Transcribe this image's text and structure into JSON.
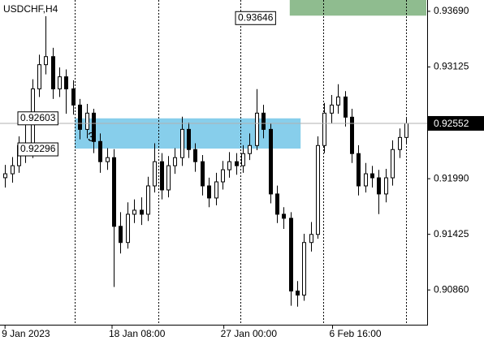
{
  "chart_data": {
    "type": "candlestick",
    "title": "USDCHF,H4",
    "x": [
      0,
      1,
      2,
      3,
      4,
      5,
      6,
      7,
      8,
      9,
      10,
      11,
      12,
      13,
      14,
      15,
      16,
      17,
      18,
      19,
      20,
      21,
      22,
      23,
      24,
      25,
      26,
      27,
      28,
      29,
      30,
      31,
      32,
      33,
      34,
      35,
      36,
      37,
      38,
      39,
      40,
      41,
      42,
      43,
      44,
      45,
      46,
      47,
      48,
      49,
      50,
      51,
      52,
      53,
      54,
      55,
      56,
      57,
      58,
      59
    ],
    "open": [
      0.92,
      0.9204,
      0.92122,
      0.92327,
      0.92245,
      0.92902,
      0.93148,
      0.9323,
      0.92902,
      0.93025,
      0.92902,
      0.92738,
      0.92491,
      0.92656,
      0.92368,
      0.92163,
      0.92204,
      0.91506,
      0.91342,
      0.91629,
      0.9167,
      0.91629,
      0.91917,
      0.92163,
      0.91876,
      0.92122,
      0.92204,
      0.92491,
      0.92286,
      0.92163,
      0.91917,
      0.91794,
      0.91958,
      0.92081,
      0.92163,
      0.92122,
      0.92245,
      0.92327,
      0.92656,
      0.92491,
      0.91835,
      0.91629,
      0.91588,
      0.90849,
      0.90808,
      0.91342,
      0.91424,
      0.92327,
      0.92656,
      0.92738,
      0.9282,
      0.92615,
      0.92245,
      0.91917,
      0.9204,
      0.91999,
      0.91835,
      0.91999,
      0.92286,
      0.92409
    ],
    "high": [
      0.9213,
      0.9221,
      0.9242,
      0.926,
      0.93,
      0.9325,
      0.9364,
      0.9332,
      0.9312,
      0.931,
      0.9299,
      0.928,
      0.9275,
      0.927,
      0.9245,
      0.923,
      0.9229,
      0.9165,
      0.9175,
      0.9178,
      0.918,
      0.9201,
      0.9235,
      0.9225,
      0.9222,
      0.923,
      0.9262,
      0.9256,
      0.9235,
      0.9223,
      0.92,
      0.9205,
      0.9217,
      0.9226,
      0.9225,
      0.9233,
      0.9245,
      0.929,
      0.9274,
      0.9255,
      0.9192,
      0.917,
      0.9165,
      0.9095,
      0.9143,
      0.9155,
      0.9242,
      0.9276,
      0.9284,
      0.9295,
      0.9288,
      0.927,
      0.9233,
      0.9215,
      0.9212,
      0.9208,
      0.9209,
      0.9238,
      0.925,
      0.9261
    ],
    "low": [
      0.919,
      0.9195,
      0.9205,
      0.9215,
      0.922,
      0.9282,
      0.9305,
      0.928,
      0.9282,
      0.9265,
      0.9264,
      0.9239,
      0.924,
      0.9225,
      0.9205,
      0.9208,
      0.9089,
      0.9123,
      0.9128,
      0.9154,
      0.9152,
      0.9156,
      0.9185,
      0.9178,
      0.918,
      0.9204,
      0.9212,
      0.922,
      0.9206,
      0.9182,
      0.917,
      0.9172,
      0.9188,
      0.92,
      0.9203,
      0.9205,
      0.9218,
      0.9228,
      0.924,
      0.9174,
      0.9154,
      0.9148,
      0.907,
      0.9069,
      0.9075,
      0.9125,
      0.9138,
      0.9225,
      0.9255,
      0.9265,
      0.9252,
      0.9215,
      0.9182,
      0.9185,
      0.919,
      0.9163,
      0.9175,
      0.9192,
      0.922,
      0.9235
    ],
    "close": [
      0.9204,
      0.92122,
      0.92327,
      0.92245,
      0.92902,
      0.93148,
      0.9323,
      0.92902,
      0.93025,
      0.92902,
      0.92738,
      0.92491,
      0.92656,
      0.92368,
      0.92163,
      0.92204,
      0.91506,
      0.91342,
      0.91629,
      0.9167,
      0.91629,
      0.91917,
      0.92163,
      0.91876,
      0.92122,
      0.92204,
      0.92491,
      0.92286,
      0.92163,
      0.91917,
      0.91794,
      0.91958,
      0.92081,
      0.92163,
      0.92122,
      0.92245,
      0.92327,
      0.92656,
      0.92491,
      0.91835,
      0.91629,
      0.91588,
      0.90849,
      0.90808,
      0.91342,
      0.91424,
      0.92327,
      0.92656,
      0.92738,
      0.9282,
      0.92615,
      0.92245,
      0.91917,
      0.9204,
      0.91999,
      0.91835,
      0.91999,
      0.92286,
      0.92409,
      0.92552
    ],
    "up_color": "#ffffff",
    "down_color": "#000000",
    "xlim": [
      -0.5,
      62
    ],
    "ylim": [
      0.90507,
      0.93805
    ],
    "xticks": [
      {
        "value": 0,
        "label": "9 Jan 2023"
      },
      {
        "value": 15.75,
        "label": "18 Jan 08:00"
      },
      {
        "value": 32.2,
        "label": "27 Jan 00:00"
      },
      {
        "value": 48.2,
        "label": "6 Feb 16:00"
      }
    ],
    "yticks": [
      {
        "value": 0.9369,
        "label": "0.93690"
      },
      0.93125,
      {
        "value": 0.9199,
        "label": "0.91990"
      },
      0.91425,
      {
        "value": 0.9086,
        "label": "0.90860"
      }
    ],
    "separators": [
      10.25,
      22.6,
      34.6,
      46.8,
      59
    ],
    "zones": [
      {
        "x": [
          10.25,
          43.5
        ],
        "y": [
          0.92296,
          0.92603
        ],
        "color": "#87ceeb"
      },
      {
        "x": [
          41.9,
          62
        ],
        "y": [
          0.93646,
          0.93805
        ],
        "color": "#8fbc8f"
      }
    ],
    "annotation": "3"
  }
}
